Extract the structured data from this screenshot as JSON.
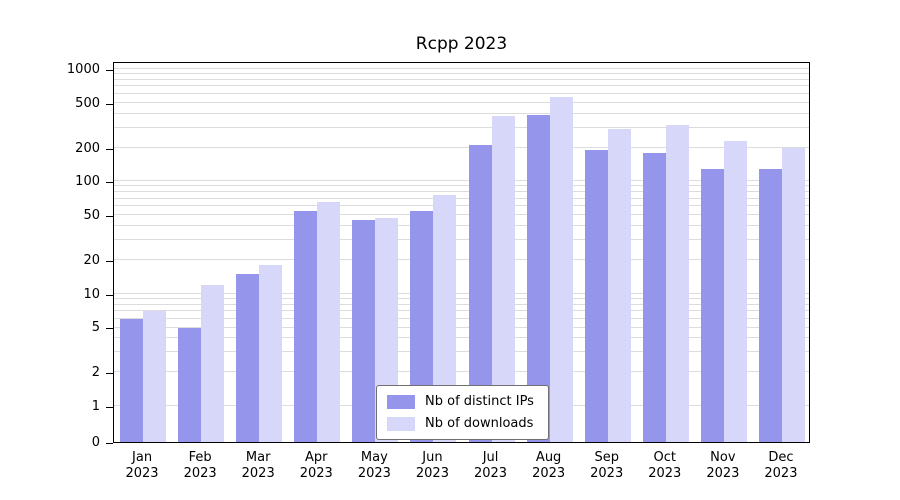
{
  "title": "Rcpp 2023",
  "chart_data": {
    "type": "bar",
    "title": "Rcpp 2023",
    "categories": [
      "Jan",
      "Feb",
      "Mar",
      "Apr",
      "May",
      "Jun",
      "Jul",
      "Aug",
      "Sep",
      "Oct",
      "Nov",
      "Dec"
    ],
    "year": "2023",
    "series": [
      {
        "name": "Nb of distinct IPs",
        "color": "#9595ec",
        "values": [
          6,
          5,
          15,
          55,
          45,
          55,
          210,
          390,
          190,
          180,
          130,
          130
        ]
      },
      {
        "name": "Nb of downloads",
        "color": "#d7d7f9",
        "values": [
          7,
          12,
          18,
          65,
          47,
          75,
          380,
          560,
          290,
          320,
          230,
          200
        ]
      }
    ],
    "yscale": "log",
    "ylim": [
      0,
      1000
    ],
    "yticks": [
      0,
      1,
      2,
      5,
      10,
      20,
      50,
      100,
      200,
      500,
      1000
    ],
    "grid": "horizontal-minor-log",
    "gridline_color": "#dcdcdc",
    "legend_position": "bottom-center-inside"
  }
}
